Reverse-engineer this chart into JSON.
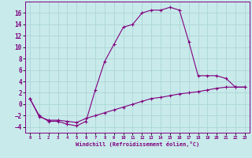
{
  "xlabel": "Windchill (Refroidissement éolien,°C)",
  "background_color": "#c8eaea",
  "grid_color": "#b0d8d8",
  "line_color": "#800080",
  "hours": [
    0,
    1,
    2,
    3,
    4,
    5,
    6,
    7,
    8,
    9,
    10,
    11,
    12,
    13,
    14,
    15,
    16,
    17,
    18,
    19,
    20,
    21,
    22,
    23
  ],
  "temp": [
    1.0,
    -2.0,
    -3.0,
    -3.0,
    -3.5,
    -3.8,
    -3.0,
    2.5,
    7.5,
    10.5,
    13.5,
    14.0,
    16.0,
    16.5,
    16.5,
    17.0,
    16.5,
    11.0,
    5.0,
    5.0,
    5.0,
    4.5,
    3.0,
    3.0
  ],
  "windchill": [
    1.0,
    -2.2,
    -2.8,
    -2.8,
    -3.0,
    -3.2,
    -2.5,
    -2.0,
    -1.5,
    -1.0,
    -0.5,
    0.0,
    0.5,
    1.0,
    1.2,
    1.5,
    1.8,
    2.0,
    2.2,
    2.5,
    2.8,
    3.0,
    3.0,
    3.0
  ],
  "ylim": [
    -5,
    18
  ],
  "xlim": [
    -0.5,
    23.5
  ],
  "yticks": [
    -4,
    -2,
    0,
    2,
    4,
    6,
    8,
    10,
    12,
    14,
    16
  ],
  "xticks": [
    0,
    1,
    2,
    3,
    4,
    5,
    6,
    7,
    8,
    9,
    10,
    11,
    12,
    13,
    14,
    15,
    16,
    17,
    18,
    19,
    20,
    21,
    22,
    23
  ]
}
